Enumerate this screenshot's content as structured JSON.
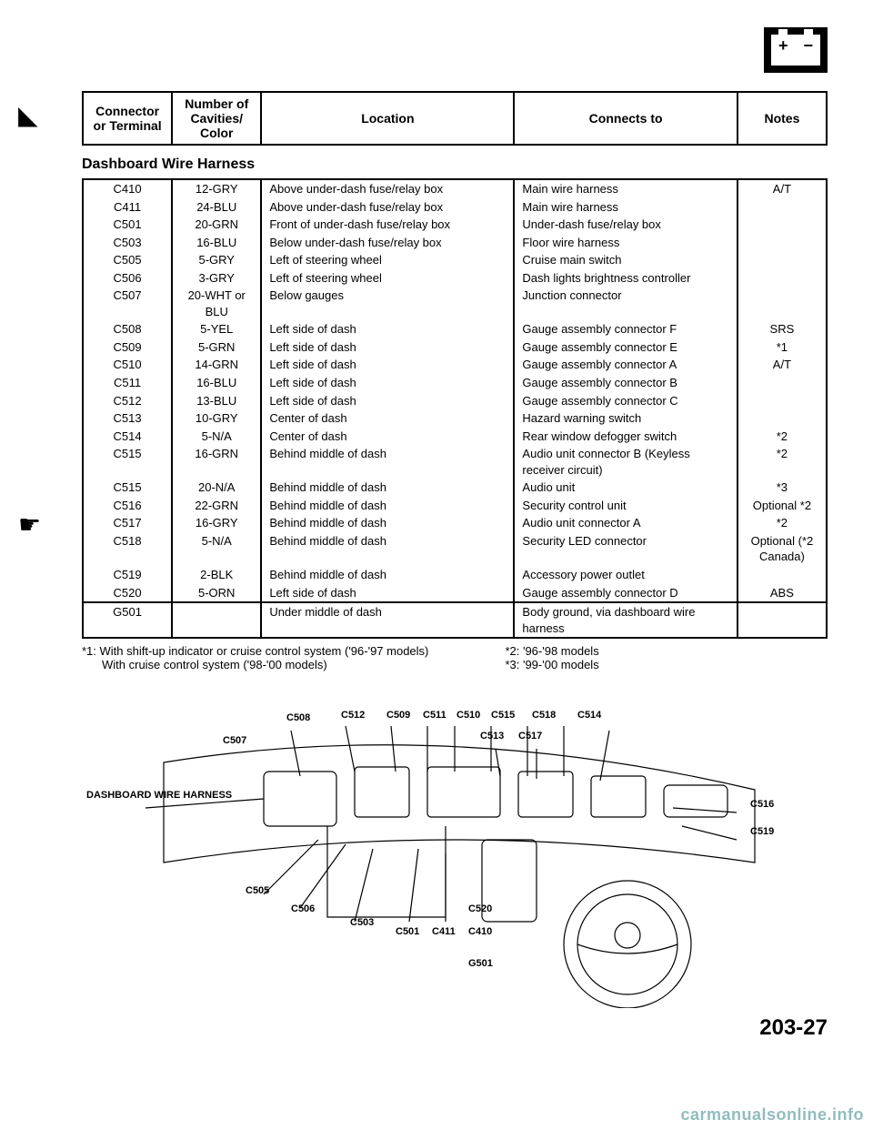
{
  "header_row": {
    "conn": "Connector or Terminal",
    "cav": "Number of Cavities/ Color",
    "loc": "Location",
    "connects": "Connects to",
    "notes": "Notes"
  },
  "section_title": "Dashboard Wire Harness",
  "rows": [
    {
      "c": "C410",
      "v": "12-GRY",
      "l": "Above under-dash fuse/relay box",
      "t": "Main wire harness",
      "n": "A/T"
    },
    {
      "c": "C411",
      "v": "24-BLU",
      "l": "Above under-dash fuse/relay box",
      "t": "Main wire harness",
      "n": ""
    },
    {
      "c": "C501",
      "v": "20-GRN",
      "l": "Front of under-dash fuse/relay box",
      "t": "Under-dash fuse/relay box",
      "n": ""
    },
    {
      "c": "C503",
      "v": "16-BLU",
      "l": "Below under-dash fuse/relay box",
      "t": "Floor wire harness",
      "n": ""
    },
    {
      "c": "C505",
      "v": "5-GRY",
      "l": "Left of steering wheel",
      "t": "Cruise main switch",
      "n": ""
    },
    {
      "c": "C506",
      "v": "3-GRY",
      "l": "Left of steering wheel",
      "t": "Dash lights brightness controller",
      "n": ""
    },
    {
      "c": "C507",
      "v": "20-WHT or BLU",
      "l": "Below gauges",
      "t": "Junction connector",
      "n": ""
    },
    {
      "c": "C508",
      "v": "5-YEL",
      "l": "Left side of dash",
      "t": "Gauge assembly connector F",
      "n": "SRS"
    },
    {
      "c": "C509",
      "v": "5-GRN",
      "l": "Left side of dash",
      "t": "Gauge assembly connector E",
      "n": "*1"
    },
    {
      "c": "C510",
      "v": "14-GRN",
      "l": "Left side of dash",
      "t": "Gauge assembly connector A",
      "n": "A/T"
    },
    {
      "c": "C511",
      "v": "16-BLU",
      "l": "Left side of dash",
      "t": "Gauge assembly connector B",
      "n": ""
    },
    {
      "c": "C512",
      "v": "13-BLU",
      "l": "Left side of dash",
      "t": "Gauge assembly connector C",
      "n": ""
    },
    {
      "c": "C513",
      "v": "10-GRY",
      "l": "Center of dash",
      "t": "Hazard warning switch",
      "n": ""
    },
    {
      "c": "C514",
      "v": "5-N/A",
      "l": "Center of dash",
      "t": "Rear window defogger switch",
      "n": "*2"
    },
    {
      "c": "C515",
      "v": "16-GRN",
      "l": "Behind middle of dash",
      "t": "Audio unit connector B (Keyless receiver circuit)",
      "n": "*2"
    },
    {
      "c": "C515",
      "v": "20-N/A",
      "l": "Behind middle of dash",
      "t": "Audio unit",
      "n": "*3"
    },
    {
      "c": "C516",
      "v": "22-GRN",
      "l": "Behind middle of dash",
      "t": "Security control unit",
      "n": "Optional *2"
    },
    {
      "c": "C517",
      "v": "16-GRY",
      "l": "Behind middle of dash",
      "t": "Audio unit connector A",
      "n": "*2"
    },
    {
      "c": "C518",
      "v": "5-N/A",
      "l": "Behind middle of dash",
      "t": "Security LED connector",
      "n": "Optional (*2 Canada)"
    },
    {
      "c": "C519",
      "v": "2-BLK",
      "l": "Behind middle of dash",
      "t": "Accessory power outlet",
      "n": ""
    },
    {
      "c": "C520",
      "v": "5-ORN",
      "l": "Left side of dash",
      "t": "Gauge assembly connector D",
      "n": "ABS"
    }
  ],
  "ground_row": {
    "c": "G501",
    "v": "",
    "l": "Under middle of dash",
    "t": "Body ground, via dashboard wire harness",
    "n": ""
  },
  "footnotes": {
    "left1": "*1: With shift-up indicator or cruise control system ('96-'97 models)",
    "left2": "With cruise control system ('98-'00 models)",
    "right1": "*2: '96-'98 models",
    "right2": "*3: '99-'00 models"
  },
  "diagram_labels": {
    "harness": "DASHBOARD WIRE HARNESS",
    "c505": "C505",
    "c506": "C506",
    "c507": "C507",
    "c508": "C508",
    "c503": "C503",
    "c512": "C512",
    "c509": "C509",
    "c511": "C511",
    "c510": "C510",
    "c515": "C515",
    "c513": "C513",
    "c517": "C517",
    "c518": "C518",
    "c514": "C514",
    "c516": "C516",
    "c519": "C519",
    "c520": "C520",
    "c501": "C501",
    "c411": "C411",
    "c410": "C410",
    "g501": "G501"
  },
  "page_number": "203-27",
  "watermark": "carmanualsonline.info"
}
